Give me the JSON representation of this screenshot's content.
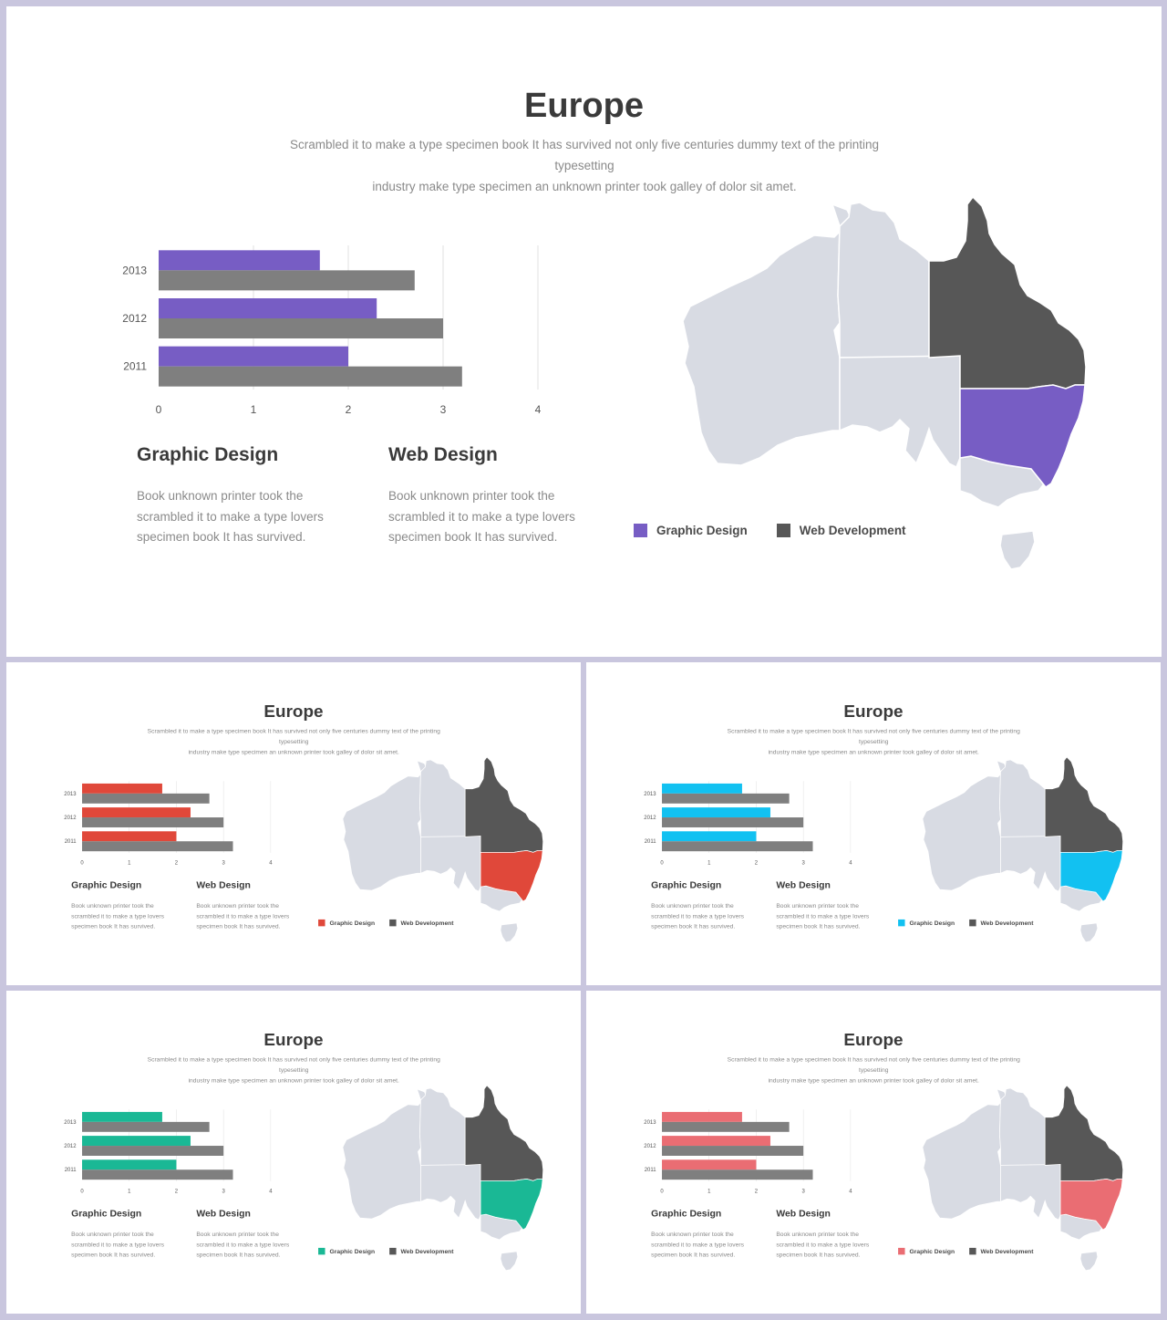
{
  "content": {
    "title": "Europe",
    "subtitle_lines": [
      "Scrambled it to make a type specimen book It has survived  not only five  centuries dummy text of the printing typesetting",
      "industry make type specimen an unknown printer took galley of dolor sit amet."
    ],
    "columns": [
      {
        "heading": "Graphic Design",
        "lines": [
          "Book unknown printer took the",
          "scrambled it to make a type lovers",
          "specimen book It has survived."
        ]
      },
      {
        "heading": "Web Design",
        "lines": [
          "Book unknown printer took the",
          "scrambled it to make a type lovers",
          "specimen book It has survived."
        ]
      }
    ],
    "legend": [
      "Graphic Design",
      "Web Development"
    ]
  },
  "colors": {
    "series_secondary": "#7f7f7f",
    "map_base": "#d8dbe3",
    "map_dark": "#575757",
    "grid": "#e1e1e1",
    "accents": [
      "#775dc4",
      "#e0483a",
      "#12c1f1",
      "#1ab895",
      "#ea6d73"
    ]
  },
  "chart_data": {
    "type": "bar",
    "orientation": "horizontal",
    "categories": [
      "2013",
      "2012",
      "2011"
    ],
    "series": [
      {
        "values": [
          1.7,
          2.3,
          2.0
        ]
      },
      {
        "values": [
          2.7,
          3.0,
          3.2
        ]
      }
    ],
    "xticks": [
      "0",
      "1",
      "2",
      "3",
      "4"
    ],
    "xlim": [
      0,
      4
    ],
    "grid": "vertical"
  }
}
